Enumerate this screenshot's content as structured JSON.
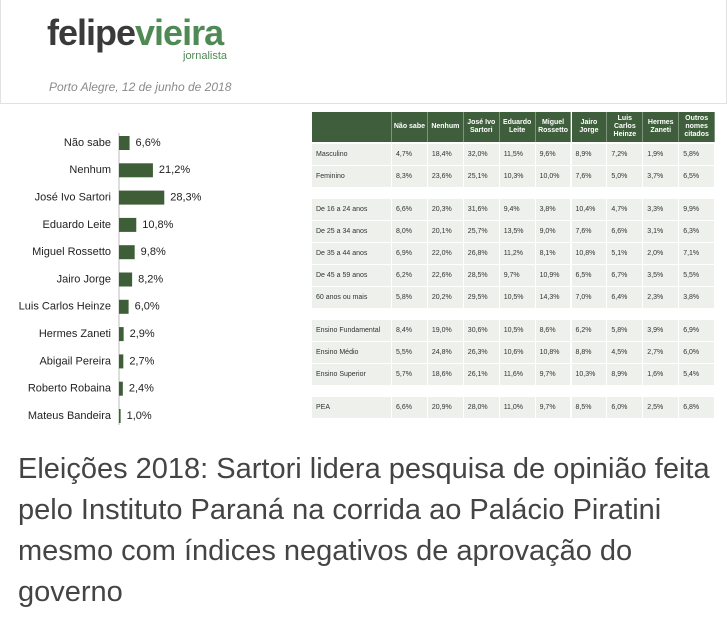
{
  "header": {
    "logo_part1": "felipe",
    "logo_part2": "vieira",
    "logo_sub": "jornalista",
    "date": "Porto Alegre, 12 de junho de 2018"
  },
  "chart": {
    "color": "#3d5e36",
    "categories": [
      "Não sabe",
      "Nenhum",
      "José Ivo Sartori",
      "Eduardo Leite",
      "Miguel Rossetto",
      "Jairo Jorge",
      "Luis Carlos Heinze",
      "Hermes Zaneti",
      "Abigail Pereira",
      "Roberto Robaina",
      "Mateus Bandeira"
    ],
    "values": [
      6.6,
      21.2,
      28.3,
      10.8,
      9.8,
      8.2,
      6.0,
      2.9,
      2.7,
      2.4,
      1.0
    ],
    "value_labels": [
      "6,6%",
      "21,2%",
      "28,3%",
      "10,8%",
      "9,8%",
      "8,2%",
      "6,0%",
      "2,9%",
      "2,7%",
      "2,4%",
      "1,0%"
    ]
  },
  "table": {
    "headers": [
      "Não sabe",
      "Nenhum",
      "José Ivo Sartori",
      "Eduardo Leite",
      "Miguel Rossetto",
      "Jairo Jorge",
      "Luis Carlos Heinze",
      "Hermes Zaneti",
      "Outros nomes citados"
    ],
    "groups": [
      [
        [
          "Masculino",
          "4,7%",
          "18,4%",
          "32,0%",
          "11,5%",
          "9,6%",
          "8,9%",
          "7,2%",
          "1,9%",
          "5,8%"
        ],
        [
          "Feminino",
          "8,3%",
          "23,6%",
          "25,1%",
          "10,3%",
          "10,0%",
          "7,6%",
          "5,0%",
          "3,7%",
          "6,5%"
        ]
      ],
      [
        [
          "De 16 a 24 anos",
          "6,6%",
          "20,3%",
          "31,6%",
          "9,4%",
          "3,8%",
          "10,4%",
          "4,7%",
          "3,3%",
          "9,9%"
        ],
        [
          "De 25 a 34 anos",
          "8,0%",
          "20,1%",
          "25,7%",
          "13,5%",
          "9,0%",
          "7,6%",
          "6,6%",
          "3,1%",
          "6,3%"
        ],
        [
          "De 35 a 44 anos",
          "6,9%",
          "22,0%",
          "26,8%",
          "11,2%",
          "8,1%",
          "10,8%",
          "5,1%",
          "2,0%",
          "7,1%"
        ],
        [
          "De 45 a 59 anos",
          "6,2%",
          "22,6%",
          "28,5%",
          "9,7%",
          "10,9%",
          "6,5%",
          "6,7%",
          "3,5%",
          "5,5%"
        ],
        [
          "60 anos ou mais",
          "5,8%",
          "20,2%",
          "29,5%",
          "10,5%",
          "14,3%",
          "7,0%",
          "6,4%",
          "2,3%",
          "3,8%"
        ]
      ],
      [
        [
          "Ensino Fundamental",
          "8,4%",
          "19,0%",
          "30,6%",
          "10,5%",
          "8,6%",
          "6,2%",
          "5,8%",
          "3,9%",
          "6,9%"
        ],
        [
          "Ensino Médio",
          "5,5%",
          "24,8%",
          "26,3%",
          "10,6%",
          "10,8%",
          "8,8%",
          "4,5%",
          "2,7%",
          "6,0%"
        ],
        [
          "Ensino Superior",
          "5,7%",
          "18,6%",
          "26,1%",
          "11,6%",
          "9,7%",
          "10,3%",
          "8,9%",
          "1,6%",
          "5,4%"
        ]
      ],
      [
        [
          "PEA",
          "6,6%",
          "20,9%",
          "28,0%",
          "11,0%",
          "9,7%",
          "8,5%",
          "6,0%",
          "2,5%",
          "6,8%"
        ]
      ]
    ]
  },
  "headline": "Eleições 2018: Sartori lidera pesquisa de opinião feita pelo Instituto Paraná na corrida ao Palácio Piratini mesmo com índices negativos de aprovação do governo"
}
